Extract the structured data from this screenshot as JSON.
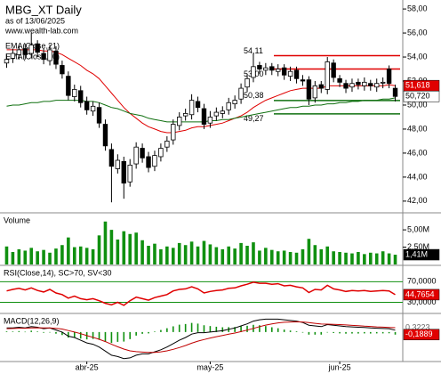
{
  "chart_data": {
    "type": "candlestick",
    "title": "MBG_XT Daily",
    "subtitle": "as of 13/06/2025",
    "source": "www.wealth-lab.com",
    "open": [
      53.5,
      53.9,
      54.2,
      54.7,
      54.3,
      55.1,
      54.3,
      53.7,
      54.5,
      53.3,
      52.4,
      50.7,
      51.2,
      50.3,
      49.5,
      49.8,
      48.4,
      46.3,
      44.7,
      45.3,
      43.6,
      45.1,
      46.4,
      45.7,
      44.9,
      45.7,
      46.5,
      47.1,
      48.3,
      49.1,
      49.2,
      50.3,
      49.7,
      48.5,
      49.1,
      49.3,
      49.6,
      50.1,
      50.5,
      51.5,
      52.3,
      53.3,
      52.9,
      53.2,
      52.8,
      53.1,
      52.4,
      52.9,
      52.1,
      52.1,
      50.6,
      51.7,
      51.3,
      53.5,
      52.2,
      51.8,
      51.5,
      51.9,
      51.6,
      51.8,
      51.5,
      51.9,
      53.0,
      51.4
    ],
    "high": [
      54.2,
      54.7,
      55.0,
      55.1,
      56.0,
      55.4,
      54.7,
      55.0,
      54.9,
      53.7,
      52.8,
      51.7,
      51.6,
      50.7,
      50.3,
      50.2,
      48.8,
      46.8,
      45.9,
      45.7,
      45.5,
      46.9,
      46.8,
      46.1,
      46.2,
      46.8,
      47.4,
      48.8,
      49.4,
      49.7,
      50.9,
      50.7,
      50.1,
      49.5,
      49.8,
      49.9,
      50.6,
      50.8,
      51.8,
      52.6,
      54.3,
      53.6,
      53.5,
      53.5,
      53.4,
      53.4,
      53.2,
      53.2,
      52.5,
      52.4,
      52.0,
      52.0,
      54.0,
      53.8,
      52.5,
      52.1,
      52.2,
      52.2,
      52.3,
      52.1,
      52.2,
      52.3,
      53.3,
      51.7
    ],
    "low": [
      53.1,
      53.5,
      53.8,
      53.8,
      53.9,
      54.0,
      53.4,
      53.3,
      53.0,
      52.2,
      50.4,
      50.3,
      49.8,
      49.2,
      49.1,
      48.1,
      46.2,
      41.9,
      44.3,
      42.2,
      43.2,
      44.7,
      45.2,
      44.4,
      44.5,
      45.3,
      46.1,
      46.7,
      47.9,
      48.7,
      48.8,
      49.4,
      48.0,
      48.1,
      48.7,
      48.9,
      49.2,
      49.7,
      50.1,
      51.1,
      51.9,
      52.6,
      52.5,
      52.5,
      52.4,
      52.1,
      52.0,
      51.8,
      51.6,
      50.0,
      50.2,
      51.0,
      50.9,
      51.9,
      51.5,
      51.0,
      51.1,
      51.3,
      51.2,
      51.2,
      51.1,
      51.4,
      51.4,
      50.3
    ],
    "close": [
      53.8,
      54.3,
      54.6,
      54.2,
      55.0,
      54.4,
      53.8,
      54.6,
      53.4,
      52.6,
      50.8,
      51.3,
      50.2,
      49.6,
      49.9,
      48.5,
      46.6,
      44.9,
      45.4,
      43.5,
      45.0,
      46.5,
      45.6,
      44.8,
      45.8,
      46.4,
      47.0,
      48.4,
      49.0,
      49.3,
      50.4,
      49.8,
      48.4,
      49.0,
      49.4,
      49.5,
      50.2,
      50.4,
      51.4,
      52.2,
      53.2,
      53.0,
      53.1,
      52.9,
      53.0,
      52.5,
      52.8,
      52.2,
      52.0,
      50.5,
      51.6,
      51.4,
      53.6,
      52.3,
      51.9,
      51.4,
      51.8,
      51.7,
      51.9,
      51.6,
      51.8,
      51.9,
      51.8,
      50.72
    ],
    "series": [
      {
        "name": "EMA(Close,21)",
        "color": "#e00000",
        "values": [
          54.6,
          54.6,
          54.6,
          54.6,
          54.6,
          54.6,
          54.5,
          54.5,
          54.4,
          54.2,
          53.9,
          53.6,
          53.3,
          52.9,
          52.6,
          52.2,
          51.6,
          51.0,
          50.4,
          49.8,
          49.3,
          48.9,
          48.5,
          48.2,
          48.0,
          47.8,
          47.7,
          47.7,
          47.8,
          47.9,
          48.1,
          48.2,
          48.2,
          48.3,
          48.4,
          48.5,
          48.7,
          48.9,
          49.1,
          49.4,
          49.8,
          50.1,
          50.4,
          50.6,
          50.8,
          51.0,
          51.2,
          51.3,
          51.4,
          51.4,
          51.4,
          51.4,
          51.6,
          51.6,
          51.6,
          51.6,
          51.6,
          51.6,
          51.6,
          51.6,
          51.6,
          51.6,
          51.7,
          51.618
        ]
      },
      {
        "name": "EMA(Close,70)",
        "color": "#107010",
        "values": [
          49.9,
          50.0,
          50.0,
          50.1,
          50.2,
          50.2,
          50.3,
          50.3,
          50.4,
          50.4,
          50.4,
          50.4,
          50.4,
          50.3,
          50.3,
          50.2,
          50.0,
          49.8,
          49.7,
          49.5,
          49.3,
          49.2,
          49.1,
          48.9,
          48.8,
          48.7,
          48.6,
          48.6,
          48.6,
          48.6,
          48.6,
          48.6,
          48.6,
          48.7,
          48.7,
          48.8,
          48.8,
          48.9,
          49.0,
          49.1,
          49.2,
          49.3,
          49.4,
          49.5,
          49.6,
          49.7,
          49.8,
          49.8,
          49.9,
          49.9,
          50.0,
          50.0,
          50.1,
          50.1,
          50.2,
          50.2,
          50.3,
          50.3,
          50.4,
          50.4,
          50.4,
          50.5,
          50.5,
          50.6
        ]
      }
    ],
    "price_labels": [
      {
        "value": 51.618,
        "label": "51,618",
        "color": "#e00000"
      },
      {
        "value": 50.72,
        "label": "50,720",
        "color": "#ffffff"
      }
    ],
    "levels": [
      {
        "value": 54.11,
        "label": "54,11",
        "color": "#e00000"
      },
      {
        "value": 53.0,
        "label": "53,00",
        "color": "#e00000"
      },
      {
        "value": 50.38,
        "label": "50,38",
        "color": "#107010"
      },
      {
        "value": 49.27,
        "label": "49,27",
        "color": "#107010"
      }
    ],
    "ylim": [
      41.1,
      58.6
    ],
    "yticks": [
      {
        "value": 42,
        "label": "42,00"
      },
      {
        "value": 44,
        "label": "44,00"
      },
      {
        "value": 46,
        "label": "46,00"
      },
      {
        "value": 48,
        "label": "48,00"
      },
      {
        "value": 50,
        "label": "50,00"
      },
      {
        "value": 52,
        "label": "52,00"
      },
      {
        "value": 54,
        "label": "54,00"
      },
      {
        "value": 56,
        "label": "56,00"
      },
      {
        "value": 58,
        "label": "58,00"
      }
    ],
    "xticks": [
      {
        "value": 13,
        "label": "abr-25"
      },
      {
        "value": 33,
        "label": "may-25"
      },
      {
        "value": 54,
        "label": "jun-25"
      }
    ],
    "volume": {
      "title": "Volume",
      "color": "#109010",
      "values": [
        2.6,
        1.8,
        2.2,
        2.0,
        2.4,
        1.9,
        2.1,
        1.7,
        2.3,
        2.8,
        3.9,
        2.5,
        2.6,
        2.4,
        2.2,
        4.2,
        6.2,
        5.0,
        3.6,
        4.8,
        4.4,
        4.6,
        3.5,
        2.7,
        3.0,
        2.2,
        2.6,
        2.4,
        3.1,
        2.8,
        3.3,
        2.6,
        3.4,
        2.9,
        2.5,
        2.2,
        2.6,
        2.3,
        3.1,
        2.7,
        3.2,
        2.0,
        2.4,
        2.1,
        1.9,
        2.0,
        1.8,
        1.7,
        2.2,
        3.7,
        2.8,
        2.2,
        2.6,
        1.9,
        1.8,
        1.7,
        1.6,
        1.8,
        1.5,
        1.7,
        1.6,
        1.9,
        1.6,
        1.41
      ],
      "last_label": {
        "value": 1.41,
        "label": "1,41M"
      },
      "ylim": [
        0,
        7.2
      ],
      "yticks": [
        {
          "value": 2.5,
          "label": "2,50M"
        },
        {
          "value": 5,
          "label": "5,00M"
        }
      ]
    },
    "rsi": {
      "title": "RSI(Close,14), SC>70, SV<30",
      "color": "#e00000",
      "values": [
        52,
        55,
        57,
        54,
        58,
        53,
        50,
        55,
        48,
        45,
        38,
        42,
        37,
        35,
        37,
        33,
        28,
        25,
        30,
        24,
        33,
        40,
        37,
        34,
        39,
        42,
        45,
        52,
        55,
        56,
        60,
        56,
        48,
        51,
        53,
        54,
        57,
        58,
        62,
        65,
        69,
        67,
        67,
        65,
        66,
        62,
        63,
        60,
        58,
        49,
        55,
        54,
        63,
        56,
        54,
        51,
        53,
        52,
        53,
        51,
        52,
        53,
        52,
        44.7654
      ],
      "last_label": {
        "value": 44.7654,
        "label": "44,7654"
      },
      "ylim": [
        10,
        100
      ],
      "yticks": [
        {
          "value": 30,
          "label": "30,0000"
        },
        {
          "value": 70,
          "label": "70,0000"
        }
      ],
      "grid_color": "#109010"
    },
    "macd": {
      "title": "MACD(12,26,9)",
      "macd": [
        0.3,
        0.3,
        0.35,
        0.3,
        0.4,
        0.35,
        0.25,
        0.3,
        0.15,
        0.0,
        -0.3,
        -0.4,
        -0.6,
        -0.8,
        -0.9,
        -1.1,
        -1.4,
        -1.7,
        -1.8,
        -1.95,
        -1.9,
        -1.7,
        -1.6,
        -1.6,
        -1.45,
        -1.3,
        -1.1,
        -0.85,
        -0.6,
        -0.4,
        -0.15,
        -0.05,
        -0.05,
        0.0,
        0.05,
        0.1,
        0.2,
        0.3,
        0.45,
        0.6,
        0.8,
        0.9,
        0.95,
        0.95,
        0.95,
        0.9,
        0.85,
        0.8,
        0.7,
        0.5,
        0.45,
        0.4,
        0.55,
        0.5,
        0.45,
        0.4,
        0.38,
        0.35,
        0.33,
        0.3,
        0.28,
        0.26,
        0.25,
        0.1334
      ],
      "signal": [
        0.25,
        0.26,
        0.28,
        0.28,
        0.3,
        0.31,
        0.3,
        0.3,
        0.27,
        0.22,
        0.11,
        0.0,
        -0.12,
        -0.26,
        -0.39,
        -0.53,
        -0.7,
        -0.9,
        -1.08,
        -1.25,
        -1.38,
        -1.44,
        -1.47,
        -1.5,
        -1.49,
        -1.45,
        -1.38,
        -1.27,
        -1.14,
        -0.99,
        -0.82,
        -0.67,
        -0.55,
        -0.44,
        -0.34,
        -0.25,
        -0.16,
        -0.07,
        0.03,
        0.14,
        0.27,
        0.4,
        0.51,
        0.6,
        0.67,
        0.72,
        0.74,
        0.75,
        0.74,
        0.69,
        0.64,
        0.59,
        0.58,
        0.57,
        0.55,
        0.52,
        0.49,
        0.46,
        0.43,
        0.41,
        0.38,
        0.36,
        0.34,
        0.3223
      ],
      "histogram": [
        0.05,
        0.04,
        0.07,
        0.02,
        0.1,
        0.04,
        -0.05,
        0.0,
        -0.12,
        -0.22,
        -0.41,
        -0.4,
        -0.48,
        -0.54,
        -0.51,
        -0.57,
        -0.7,
        -0.8,
        -0.72,
        -0.7,
        -0.52,
        -0.26,
        -0.13,
        -0.1,
        0.04,
        0.15,
        0.28,
        0.42,
        0.54,
        0.59,
        0.67,
        0.62,
        0.5,
        0.44,
        0.39,
        0.35,
        0.36,
        0.37,
        0.42,
        0.46,
        0.53,
        0.5,
        0.44,
        0.35,
        0.28,
        0.18,
        0.11,
        0.05,
        -0.04,
        -0.19,
        -0.19,
        -0.19,
        -0.03,
        -0.07,
        -0.1,
        -0.12,
        -0.11,
        -0.11,
        -0.1,
        -0.11,
        -0.1,
        -0.1,
        -0.09,
        -0.1889
      ],
      "macd_color": "#000000",
      "signal_color": "#c00000",
      "histogram_color": "#109010",
      "signal_label": {
        "value": 0.3223,
        "label": "0,3223"
      },
      "histogram_label": {
        "value": -0.1889,
        "label": "-0,1889"
      },
      "ylim": [
        -2.1,
        1.3
      ]
    }
  }
}
